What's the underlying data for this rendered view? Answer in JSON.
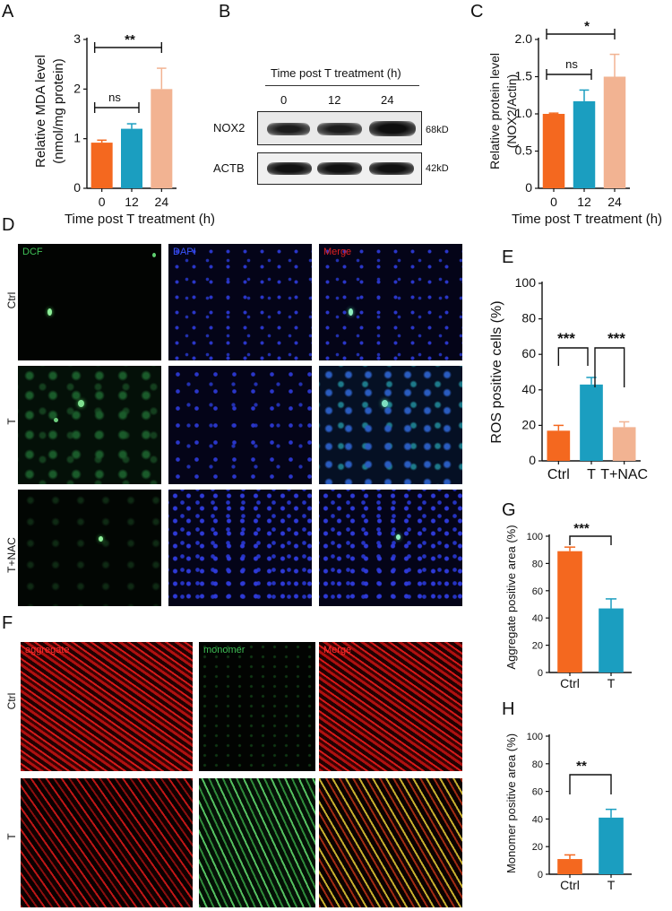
{
  "panel_letters": {
    "A": "A",
    "B": "B",
    "C": "C",
    "D": "D",
    "E": "E",
    "F": "F",
    "G": "G",
    "H": "H"
  },
  "colors": {
    "c0": "#f4681f",
    "c12": "#1b9ec0",
    "c24": "#f2b392",
    "ctrl": "#f4681f",
    "t": "#1b9ec0",
    "tnac": "#f2b392"
  },
  "panelA": {
    "ylabel1": "Relative MDA level",
    "ylabel2": "(nmol/mg protein)",
    "xlabel": "Time post T treatment (h)",
    "sig_top": "**",
    "sig_ns": "ns"
  },
  "panelB": {
    "header": "Time post T treatment (h)",
    "lanes": [
      "0",
      "12",
      "24"
    ],
    "rows": [
      {
        "name": "NOX2",
        "size": "68kD"
      },
      {
        "name": "ACTB",
        "size": "42kD"
      }
    ]
  },
  "panelC": {
    "ylabel1": "Relative protein level",
    "ylabel2": "(NOX2/Actin)",
    "xlabel": "Time post T treatment (h)",
    "sig_top": "*",
    "sig_ns": "ns"
  },
  "panelD": {
    "columns": [
      "DCF",
      "DAPI",
      "Merge"
    ],
    "rows": [
      "Ctrl",
      "T",
      "T+NAC"
    ]
  },
  "panelE": {
    "ylabel": "ROS positive cells (%)",
    "sig1": "***",
    "sig2": "***"
  },
  "panelF": {
    "columns": [
      "aggregate",
      "monomer",
      "Merge"
    ],
    "rows": [
      "Ctrl",
      "T"
    ]
  },
  "panelG": {
    "ylabel": "Aggregate positive area (%)",
    "sig": "***"
  },
  "panelH": {
    "ylabel": "Monomer positive area (%)",
    "sig": "**"
  },
  "chart_data": [
    {
      "id": "A",
      "type": "bar",
      "categories": [
        "0",
        "12",
        "24"
      ],
      "values": [
        0.92,
        1.2,
        2.0
      ],
      "errors": [
        0.05,
        0.1,
        0.42
      ],
      "ylabel": "Relative MDA level (nmol/mg protein)",
      "xlabel": "Time post T treatment (h)",
      "ylim": [
        0,
        3
      ],
      "yticks": [
        0,
        1,
        2,
        3
      ]
    },
    {
      "id": "C",
      "type": "bar",
      "categories": [
        "0",
        "12",
        "24"
      ],
      "values": [
        1.0,
        1.17,
        1.5
      ],
      "errors": [
        0.01,
        0.15,
        0.3
      ],
      "ylabel": "Relative protein level (NOX2/Actin)",
      "xlabel": "Time post T treatment (h)",
      "ylim": [
        0,
        2.0
      ],
      "yticks": [
        "0",
        "0.5",
        "1.0",
        "1.5",
        "2.0"
      ]
    },
    {
      "id": "E",
      "type": "bar",
      "categories": [
        "Ctrl",
        "T",
        "T+NAC"
      ],
      "values": [
        17,
        43,
        19
      ],
      "errors": [
        3,
        4,
        3
      ],
      "ylabel": "ROS positive cells (%)",
      "ylim": [
        0,
        100
      ],
      "yticks": [
        0,
        20,
        40,
        60,
        80,
        100
      ]
    },
    {
      "id": "G",
      "type": "bar",
      "categories": [
        "Ctrl",
        "T"
      ],
      "values": [
        89,
        47
      ],
      "errors": [
        3,
        7
      ],
      "ylabel": "Aggregate positive area (%)",
      "ylim": [
        0,
        100
      ],
      "yticks": [
        0,
        20,
        40,
        60,
        80,
        100
      ]
    },
    {
      "id": "H",
      "type": "bar",
      "categories": [
        "Ctrl",
        "T"
      ],
      "values": [
        11,
        41
      ],
      "errors": [
        3,
        6
      ],
      "ylabel": "Monomer positive area (%)",
      "ylim": [
        0,
        100
      ],
      "yticks": [
        0,
        20,
        40,
        60,
        80,
        100
      ]
    }
  ]
}
